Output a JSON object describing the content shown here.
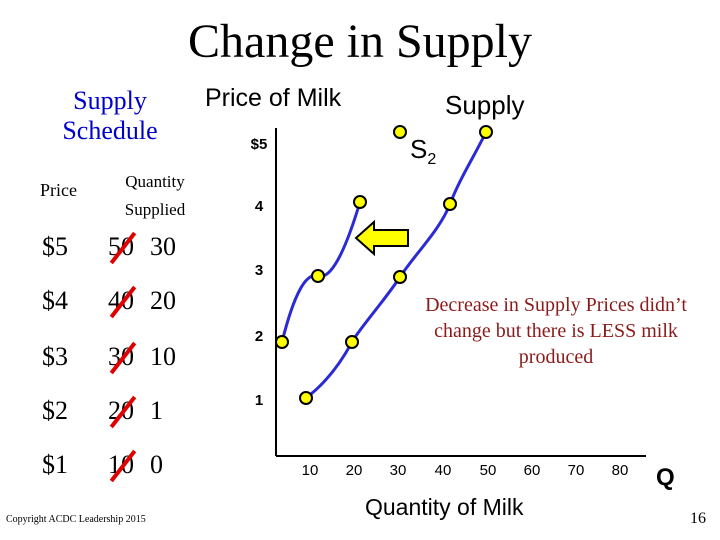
{
  "title": "Change in Supply",
  "schedule": {
    "title": "Supply Schedule",
    "price_header": "Price",
    "quantity_header": "Quantity Supplied",
    "rows": [
      {
        "price": "$5",
        "old_qty": "50",
        "new_qty": "30"
      },
      {
        "price": "$4",
        "old_qty": "40",
        "new_qty": "20"
      },
      {
        "price": "$3",
        "old_qty": "30",
        "new_qty": "10"
      },
      {
        "price": "$2",
        "old_qty": "20",
        "new_qty": "1"
      },
      {
        "price": "$1",
        "old_qty": "10",
        "new_qty": "0"
      }
    ]
  },
  "graph": {
    "y_axis_title": "Price of Milk",
    "x_axis_title": "Quantity of Milk",
    "x_axis_symbol": "Q",
    "y_ticks": [
      "$5",
      "4",
      "3",
      "2",
      "1"
    ],
    "x_ticks": [
      "10",
      "20",
      "30",
      "40",
      "50",
      "60",
      "70",
      "80"
    ],
    "supply_label": "Supply",
    "s2_label_main": "S",
    "s2_label_sub": "2",
    "shift_arrow": "left-arrow",
    "colors": {
      "curve": "#2b2bd6",
      "point": "#ffff00",
      "arrow": "#ffff00",
      "strike": "#e00000",
      "note": "#8b1a1a"
    }
  },
  "note": "Decrease in Supply Prices didn’t change but there is LESS milk produced",
  "copyright": "Copyright ACDC Leadership 2015",
  "page_number": "16"
}
